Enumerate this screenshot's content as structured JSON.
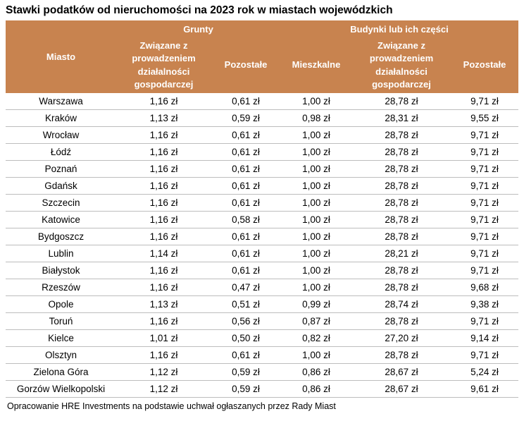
{
  "title": "Stawki podatków od nieruchomości na 2023 rok w miastach wojewódzkich",
  "footer": "Opracowanie HRE Investments na podstawie uchwał ogłaszanych przez Rady Miast",
  "colors": {
    "header_bg": "#C8834F",
    "header_text": "#FFFFFF",
    "row_border": "#BDBDBD"
  },
  "chart_data": {
    "type": "table",
    "title": "Stawki podatków od nieruchomości na 2023 rok w miastach wojewódzkich",
    "column_groups": [
      {
        "label": "Miasto",
        "span": 1
      },
      {
        "label": "Grunty",
        "span": 2
      },
      {
        "label": "Budynki lub ich części",
        "span": 3
      }
    ],
    "sub_columns": [
      "Związane z prowadzeniem działalności gospodarczej",
      "Pozostałe",
      "Mieszkalne",
      "Związane z prowadzeniem działalności gospodarczej",
      "Pozostałe"
    ],
    "rows": [
      [
        "Warszawa",
        "1,16 zł",
        "0,61 zł",
        "1,00 zł",
        "28,78 zł",
        "9,71 zł"
      ],
      [
        "Kraków",
        "1,13 zł",
        "0,59 zł",
        "0,98 zł",
        "28,31 zł",
        "9,55 zł"
      ],
      [
        "Wrocław",
        "1,16 zł",
        "0,61 zł",
        "1,00 zł",
        "28,78 zł",
        "9,71 zł"
      ],
      [
        "Łódź",
        "1,16 zł",
        "0,61 zł",
        "1,00 zł",
        "28,78 zł",
        "9,71 zł"
      ],
      [
        "Poznań",
        "1,16 zł",
        "0,61 zł",
        "1,00 zł",
        "28,78 zł",
        "9,71 zł"
      ],
      [
        "Gdańsk",
        "1,16 zł",
        "0,61 zł",
        "1,00 zł",
        "28,78 zł",
        "9,71 zł"
      ],
      [
        "Szczecin",
        "1,16 zł",
        "0,61 zł",
        "1,00 zł",
        "28,78 zł",
        "9,71 zł"
      ],
      [
        "Katowice",
        "1,16 zł",
        "0,58 zł",
        "1,00 zł",
        "28,78 zł",
        "9,71 zł"
      ],
      [
        "Bydgoszcz",
        "1,16 zł",
        "0,61 zł",
        "1,00 zł",
        "28,78 zł",
        "9,71 zł"
      ],
      [
        "Lublin",
        "1,14 zł",
        "0,61 zł",
        "1,00 zł",
        "28,21 zł",
        "9,71 zł"
      ],
      [
        "Białystok",
        "1,16 zł",
        "0,61 zł",
        "1,00 zł",
        "28,78 zł",
        "9,71 zł"
      ],
      [
        "Rzeszów",
        "1,16 zł",
        "0,47 zł",
        "1,00 zł",
        "28,78 zł",
        "9,68 zł"
      ],
      [
        "Opole",
        "1,13 zł",
        "0,51 zł",
        "0,99 zł",
        "28,74 zł",
        "9,38 zł"
      ],
      [
        "Toruń",
        "1,16 zł",
        "0,56 zł",
        "0,87 zł",
        "28,78 zł",
        "9,71 zł"
      ],
      [
        "Kielce",
        "1,01 zł",
        "0,50 zł",
        "0,82 zł",
        "27,20 zł",
        "9,14 zł"
      ],
      [
        "Olsztyn",
        "1,16 zł",
        "0,61 zł",
        "1,00 zł",
        "28,78 zł",
        "9,71 zł"
      ],
      [
        "Zielona Góra",
        "1,12 zł",
        "0,59 zł",
        "0,86 zł",
        "28,67 zł",
        "5,24 zł"
      ],
      [
        "Gorzów Wielkopolski",
        "1,12 zł",
        "0,59 zł",
        "0,86 zł",
        "28,67 zł",
        "9,61 zł"
      ]
    ]
  }
}
